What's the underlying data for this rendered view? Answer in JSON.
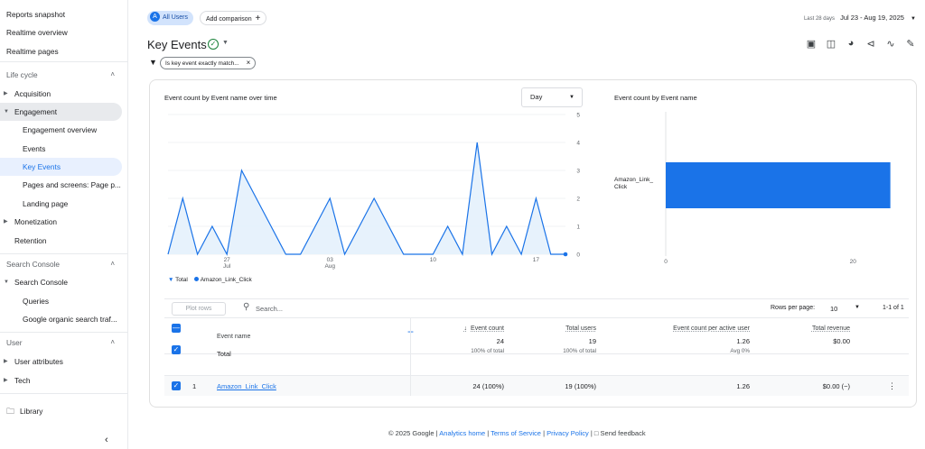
{
  "sidebar": {
    "top_items": [
      "Reports snapshot",
      "Realtime overview",
      "Realtime pages"
    ],
    "lifecycle": {
      "heading": "Life cycle",
      "acquisition": "Acquisition",
      "engagement": "Engagement",
      "engagement_children": [
        "Engagement overview",
        "Events",
        "Key Events",
        "Pages and screens: Page p...",
        "Landing page"
      ],
      "monetization": "Monetization",
      "retention": "Retention"
    },
    "search_console": {
      "heading": "Search Console",
      "group": "Search Console",
      "children": [
        "Queries",
        "Google organic search traf..."
      ]
    },
    "user": {
      "heading": "User",
      "items": [
        "User attributes",
        "Tech"
      ]
    },
    "library": "Library"
  },
  "topbar": {
    "segment_badge": "A",
    "segment": "All Users",
    "add_comparison": "Add comparison",
    "date_label": "Last 28 days",
    "date_range": "Jul 23 - Aug 19, 2025"
  },
  "page": {
    "title": "Key Events",
    "filter": "Is key event exactly match..."
  },
  "line_chart": {
    "title": "Event count by Event name over time",
    "granularity": "Day",
    "legend_total": "Total",
    "legend_series": "Amazon_Link_Click"
  },
  "bar_chart": {
    "title": "Event count by Event name",
    "category": "Amazon_Link_Click"
  },
  "chart_data": [
    {
      "type": "area",
      "title": "Event count by Event name over time",
      "x": [
        "Jul 23",
        "Jul 24",
        "Jul 25",
        "Jul 26",
        "Jul 27",
        "Jul 28",
        "Jul 29",
        "Jul 30",
        "Jul 31",
        "Aug 1",
        "Aug 2",
        "Aug 3",
        "Aug 4",
        "Aug 5",
        "Aug 6",
        "Aug 7",
        "Aug 8",
        "Aug 9",
        "Aug 10",
        "Aug 11",
        "Aug 12",
        "Aug 13",
        "Aug 14",
        "Aug 15",
        "Aug 16",
        "Aug 17",
        "Aug 18",
        "Aug 19"
      ],
      "x_tick_labels": [
        {
          "at": "Jul 27",
          "label": "27",
          "sub": "Jul"
        },
        {
          "at": "Aug 3",
          "label": "03",
          "sub": "Aug"
        },
        {
          "at": "Aug 10",
          "label": "10",
          "sub": ""
        },
        {
          "at": "Aug 17",
          "label": "17",
          "sub": ""
        }
      ],
      "series": [
        {
          "name": "Amazon_Link_Click",
          "values": [
            0,
            2,
            0,
            1,
            0,
            3,
            2,
            1,
            0,
            0,
            1,
            2,
            0,
            1,
            2,
            1,
            0,
            0,
            0,
            1,
            0,
            4,
            0,
            1,
            0,
            2,
            0,
            0
          ]
        }
      ],
      "y_ticks": [
        0,
        1,
        2,
        3,
        4,
        5
      ],
      "ylim": [
        0,
        5
      ],
      "grid": true
    },
    {
      "type": "bar",
      "orientation": "horizontal",
      "title": "Event count by Event name",
      "categories": [
        "Amazon_Link_Click"
      ],
      "values": [
        24
      ],
      "x_ticks": [
        0,
        20
      ],
      "xlim": [
        0,
        25
      ]
    }
  ],
  "table": {
    "plot_rows": "Plot rows",
    "search_placeholder": "Search...",
    "rows_per_page_label": "Rows per page:",
    "rows_per_page": "10",
    "pagination": "1-1 of 1",
    "headers": {
      "event_name": "Event name",
      "event_count": "Event count",
      "total_users": "Total users",
      "per_user": "Event count per active user",
      "revenue": "Total revenue"
    },
    "total": {
      "label": "Total",
      "event_count": "24",
      "event_count_sub": "100% of total",
      "total_users": "19",
      "total_users_sub": "100% of total",
      "per_user": "1.26",
      "per_user_sub": "Avg 0%",
      "revenue": "$0.00"
    },
    "rows": [
      {
        "index": "1",
        "name": "Amazon_Link_Click",
        "event_count": "24 (100%)",
        "total_users": "19 (100%)",
        "per_user": "1.26",
        "revenue": "$0.00 (−)"
      }
    ]
  },
  "footer": {
    "copyright": "© 2025 Google",
    "analytics_home": "Analytics home",
    "terms": "Terms of Service",
    "privacy": "Privacy Policy",
    "feedback": "Send feedback"
  },
  "colors": {
    "accent": "#1a73e8",
    "active_bg": "#e8f0fe",
    "area_fill": "#e3f0fb"
  }
}
